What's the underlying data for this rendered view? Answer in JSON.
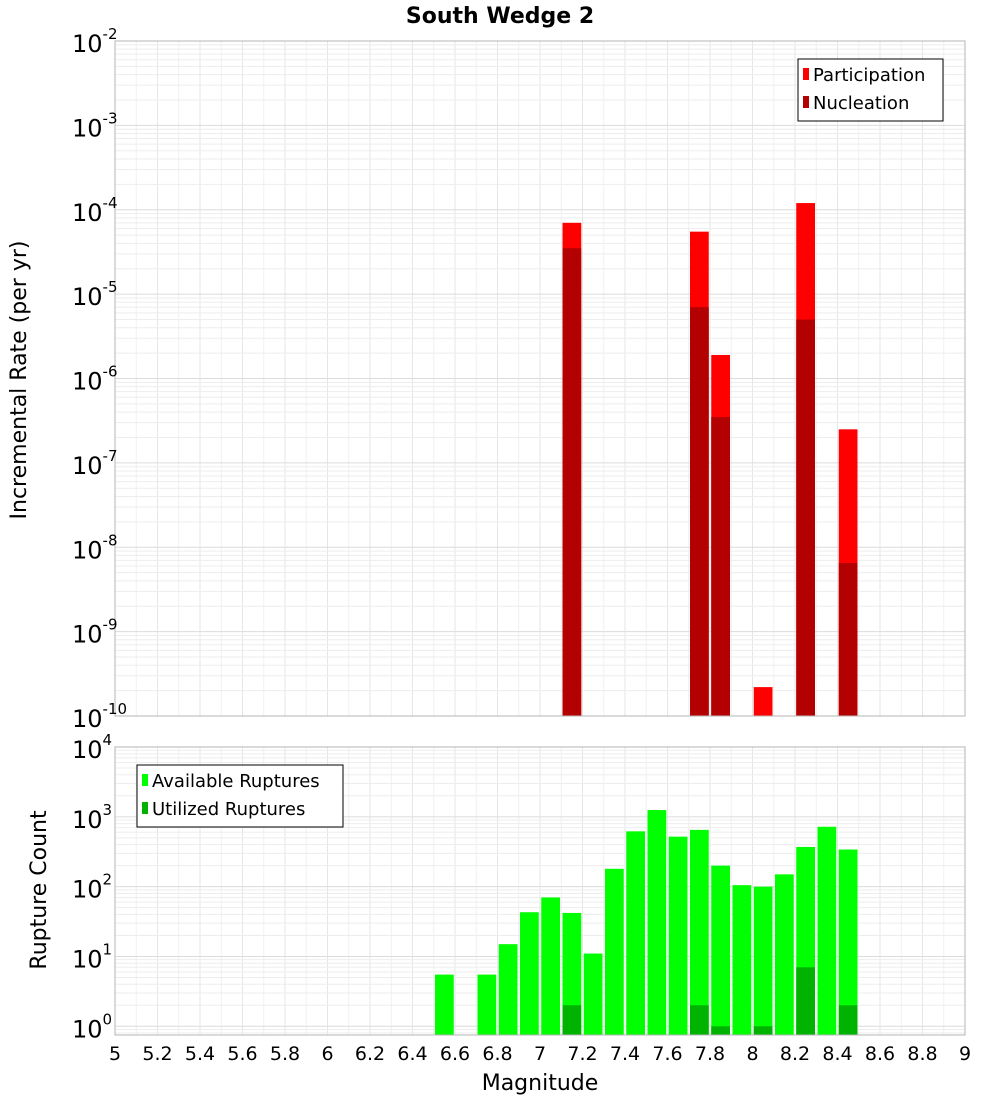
{
  "chart_data": [
    {
      "type": "bar",
      "scale": "log",
      "title": "South Wedge 2",
      "xlabel": "Magnitude",
      "ylabel": "Incremental Rate (per yr)",
      "xlim": [
        5,
        9
      ],
      "ylim": [
        1e-10,
        0.01
      ],
      "y_tick_exponents": [
        -10,
        -9,
        -8,
        -7,
        -6,
        -5,
        -4,
        -3,
        -2
      ],
      "legend": "top-right",
      "series": [
        {
          "name": "Participation",
          "color": "#ff0000",
          "points": [
            {
              "x": 7.15,
              "y": 7e-05
            },
            {
              "x": 7.75,
              "y": 5.5e-05
            },
            {
              "x": 7.85,
              "y": 1.9e-06
            },
            {
              "x": 8.05,
              "y": 2.2e-10
            },
            {
              "x": 8.25,
              "y": 0.00012
            },
            {
              "x": 8.45,
              "y": 2.5e-07
            }
          ]
        },
        {
          "name": "Nucleation",
          "color": "#b30000",
          "points": [
            {
              "x": 7.15,
              "y": 3.5e-05
            },
            {
              "x": 7.75,
              "y": 7e-06
            },
            {
              "x": 7.85,
              "y": 3.5e-07
            },
            {
              "x": 8.25,
              "y": 5e-06
            },
            {
              "x": 8.45,
              "y": 6.5e-09
            }
          ]
        }
      ]
    },
    {
      "type": "bar",
      "scale": "log",
      "title": "",
      "xlabel": "Magnitude",
      "ylabel": "Rupture Count",
      "xlim": [
        5,
        9
      ],
      "ylim": [
        0.75,
        10000
      ],
      "y_tick_exponents": [
        0,
        1,
        2,
        3,
        4
      ],
      "x_ticks": [
        "5",
        "5.2",
        "5.4",
        "5.6",
        "5.8",
        "6",
        "6.2",
        "6.4",
        "6.6",
        "6.8",
        "7",
        "7.2",
        "7.4",
        "7.6",
        "7.8",
        "8",
        "8.2",
        "8.4",
        "8.6",
        "8.8",
        "9"
      ],
      "legend": "top-left",
      "series": [
        {
          "name": "Available Ruptures",
          "color": "#00ff00",
          "points": [
            {
              "x": 6.55,
              "y": 5.5
            },
            {
              "x": 6.75,
              "y": 5.5
            },
            {
              "x": 6.85,
              "y": 15
            },
            {
              "x": 6.95,
              "y": 43
            },
            {
              "x": 7.05,
              "y": 70
            },
            {
              "x": 7.15,
              "y": 42
            },
            {
              "x": 7.25,
              "y": 11
            },
            {
              "x": 7.35,
              "y": 180
            },
            {
              "x": 7.45,
              "y": 620
            },
            {
              "x": 7.55,
              "y": 1250
            },
            {
              "x": 7.65,
              "y": 520
            },
            {
              "x": 7.75,
              "y": 650
            },
            {
              "x": 7.85,
              "y": 200
            },
            {
              "x": 7.95,
              "y": 105
            },
            {
              "x": 8.05,
              "y": 100
            },
            {
              "x": 8.15,
              "y": 150
            },
            {
              "x": 8.25,
              "y": 370
            },
            {
              "x": 8.35,
              "y": 720
            },
            {
              "x": 8.45,
              "y": 340
            }
          ]
        },
        {
          "name": "Utilized Ruptures",
          "color": "#00b300",
          "points": [
            {
              "x": 7.15,
              "y": 2
            },
            {
              "x": 7.75,
              "y": 2
            },
            {
              "x": 7.85,
              "y": 1
            },
            {
              "x": 8.05,
              "y": 1
            },
            {
              "x": 8.25,
              "y": 7
            },
            {
              "x": 8.45,
              "y": 2
            }
          ]
        }
      ]
    }
  ]
}
